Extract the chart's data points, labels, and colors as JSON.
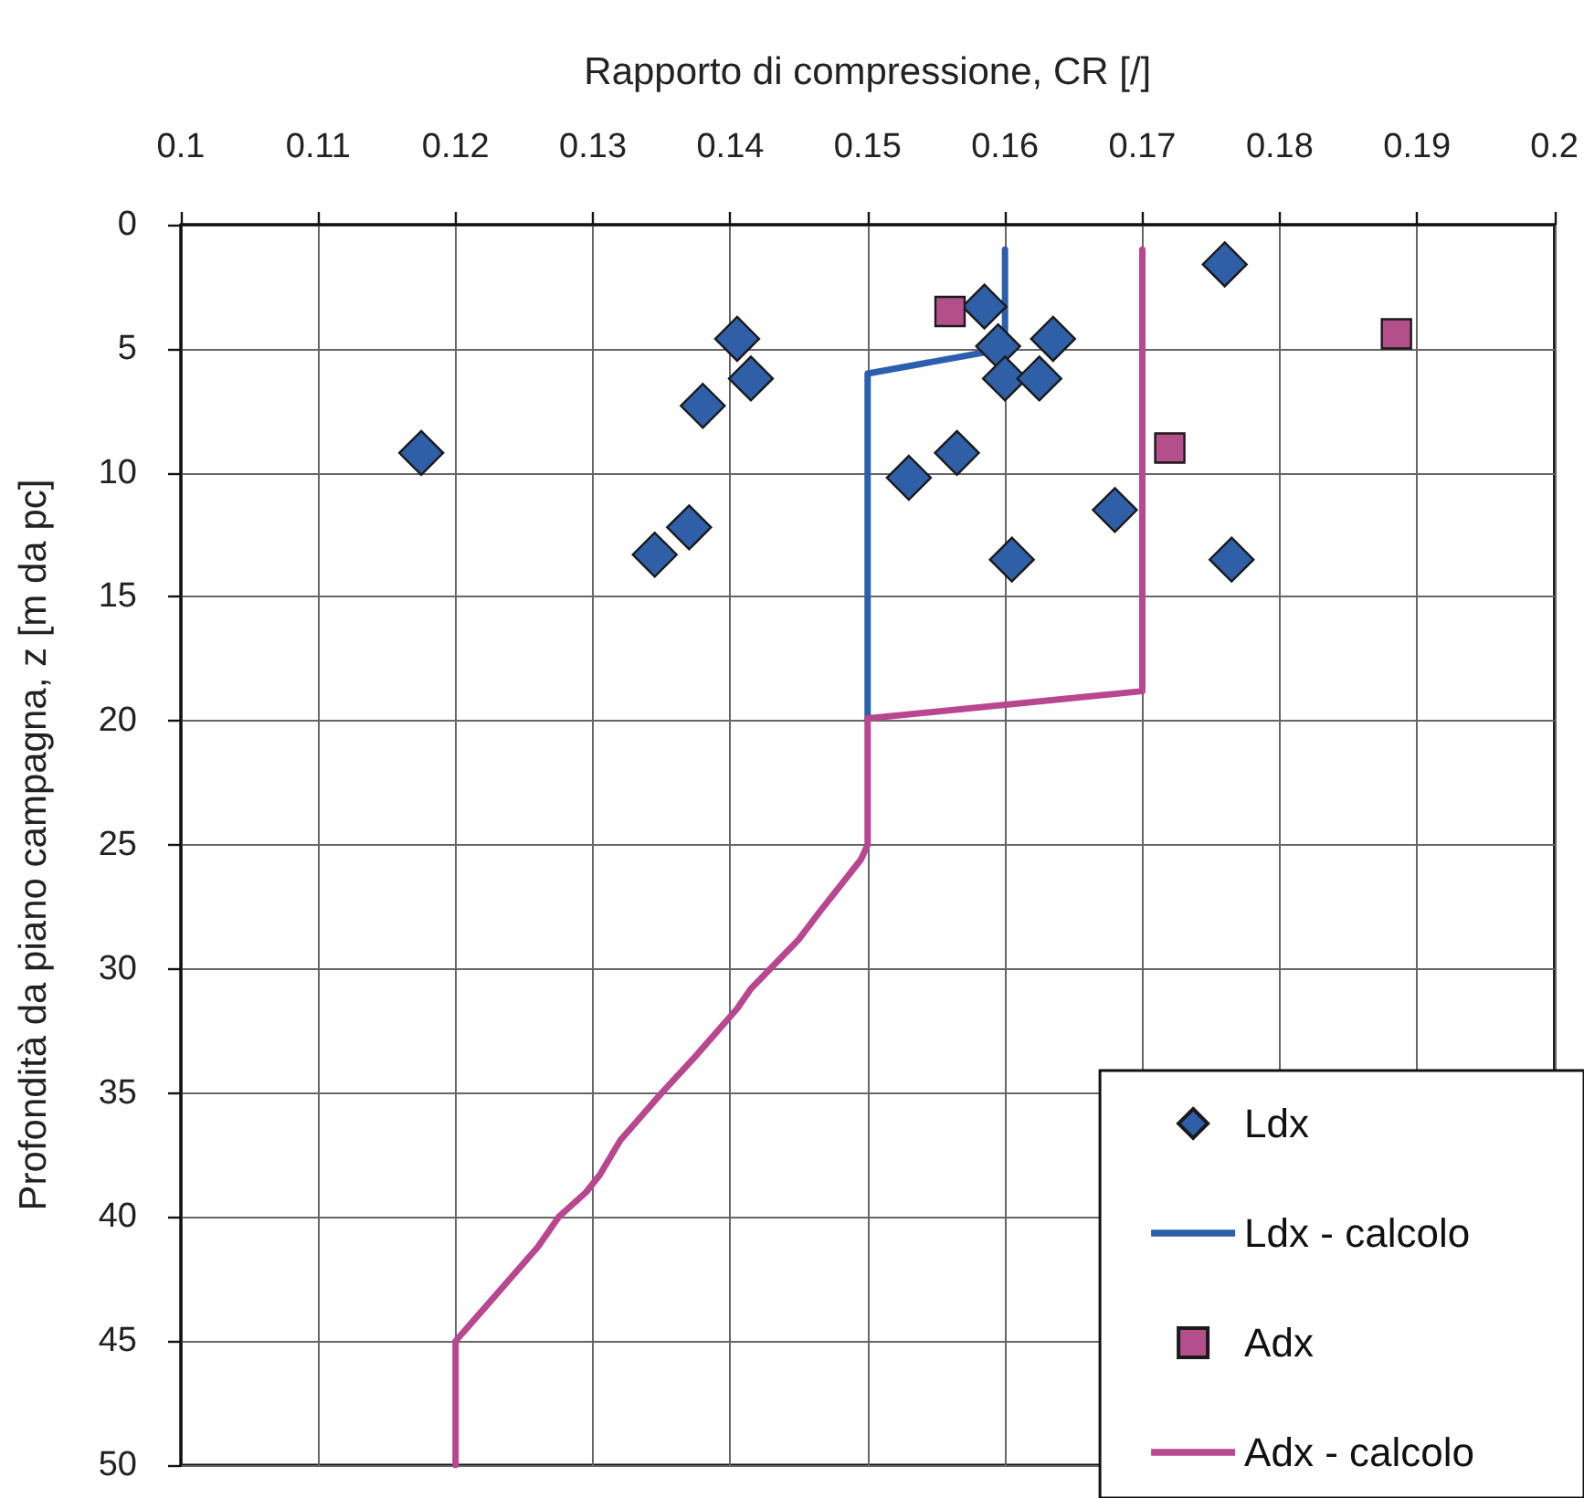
{
  "chart_data": {
    "type": "scatter",
    "xlabel": "Rapporto di compressione, CR [/]",
    "ylabel": "Profondità da piano campagna, z [m da pc]",
    "xlim": [
      0.1,
      0.2
    ],
    "xticks": [
      0.1,
      0.11,
      0.12,
      0.13,
      0.14,
      0.15,
      0.16,
      0.17,
      0.18,
      0.19,
      0.2
    ],
    "ylim": [
      50,
      0
    ],
    "yticks": [
      0,
      5,
      10,
      15,
      20,
      25,
      30,
      35,
      40,
      45,
      50
    ],
    "grid": true,
    "legend": "bottom right",
    "series": [
      {
        "name": "Ldx",
        "marker": "diamond",
        "color": "#2f5fa7",
        "x": [
          0.176,
          0.1585,
          0.1405,
          0.1595,
          0.1635,
          0.1415,
          0.16,
          0.1625,
          0.138,
          0.1175,
          0.1565,
          0.153,
          0.168,
          0.137,
          0.1345,
          0.1605,
          0.1765
        ],
        "values": [
          1.6,
          3.3,
          4.6,
          4.9,
          4.6,
          6.2,
          6.2,
          6.2,
          7.3,
          9.2,
          9.2,
          10.2,
          11.5,
          12.2,
          13.3,
          13.5,
          13.5
        ]
      },
      {
        "name": "Ldx - calcolo",
        "type": "line",
        "marker": "none",
        "line_style": "solid",
        "color": "#2b5fae",
        "x": [
          0.16,
          0.16,
          0.15,
          0.15
        ],
        "values": [
          1,
          5,
          6,
          20
        ]
      },
      {
        "name": "Adx",
        "marker": "square",
        "color": "#b3508c",
        "x": [
          0.156,
          0.1885,
          0.172
        ],
        "values": [
          3.5,
          4.4,
          9.0
        ]
      },
      {
        "name": "Adx - calcolo",
        "type": "line",
        "marker": "none",
        "line_style": "solid",
        "color": "#b8478f",
        "x": [
          0.17,
          0.17,
          0.15,
          0.15,
          0.1495,
          0.1465,
          0.145,
          0.1415,
          0.1405,
          0.1375,
          0.135,
          0.132,
          0.1305,
          0.1295,
          0.1275,
          0.126,
          0.12,
          0.12
        ],
        "values": [
          1,
          18.8,
          19.9,
          25,
          25.6,
          27.7,
          28.8,
          30.8,
          31.6,
          33.5,
          35,
          36.9,
          38.3,
          39,
          40,
          41.2,
          45,
          50
        ]
      }
    ]
  }
}
